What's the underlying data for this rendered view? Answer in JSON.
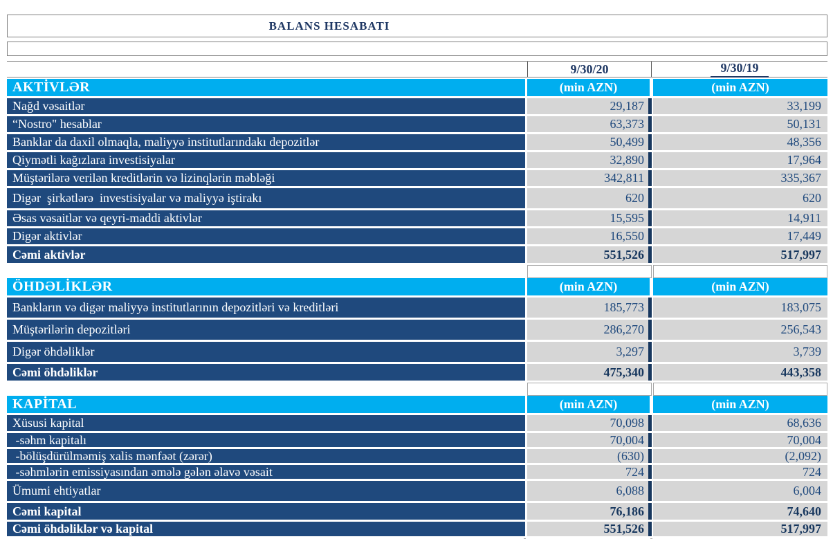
{
  "title": "BALANS HESABATI",
  "columns": {
    "col1": "9/30/20",
    "col2": "9/30/19"
  },
  "unit_label": "(min AZN)",
  "colors": {
    "section_header_bg": "#00AEEF",
    "label_row_bg": "#1F497D",
    "value_cell_bg": "#D6D6D6",
    "thick_divider": "#17375E",
    "title_text": "#1F3864"
  },
  "sections": [
    {
      "name": "AKTİVLƏR",
      "rows": [
        {
          "label": "Nağd vəsaitlər",
          "v2020": "29,187",
          "v2019": "33,199"
        },
        {
          "label": "“Nostro\" hesablar",
          "v2020": "63,373",
          "v2019": "50,131"
        },
        {
          "label": "Banklar da daxil olmaqla, maliyyə institutlarındakı depozitlər",
          "v2020": "50,499",
          "v2019": "48,356"
        },
        {
          "label": "Qiymətli kağızlara investisiyalar",
          "v2020": "32,890",
          "v2019": "17,964"
        },
        {
          "label": "Müştərilərə verilən kreditlərin və lizinqlərin məbləği",
          "v2020": "342,811",
          "v2019": "335,367"
        },
        {
          "label": "Digər  şirkətlərə  investisiyalar və maliyyə iştirakı",
          "v2020": "620",
          "v2019": "620",
          "variant": "roomy"
        },
        {
          "label": "Əsas vəsaitlər və qeyri-maddi aktivlər",
          "v2020": "15,595",
          "v2019": "14,911"
        },
        {
          "label": "Digər aktivlər",
          "v2020": "16,550",
          "v2019": "17,449"
        },
        {
          "label": "Cəmi aktivlər",
          "v2020": "551,526",
          "v2019": "517,997",
          "total": true
        }
      ]
    },
    {
      "name": "ÖHDƏLİKLƏR",
      "rows": [
        {
          "label": "Bankların və digər maliyyə institutlarının depozitləri və kreditləri",
          "v2020": "185,773",
          "v2019": "183,075",
          "variant": "roomy"
        },
        {
          "label": "Müştərilərin depozitləri",
          "v2020": "286,270",
          "v2019": "256,543",
          "variant": "roomy"
        },
        {
          "label": "Digər öhdəliklər",
          "v2020": "3,297",
          "v2019": "3,739",
          "variant": "roomy"
        },
        {
          "label": "Cəmi öhdəliklər",
          "v2020": "475,340",
          "v2019": "443,358",
          "total": true
        }
      ]
    },
    {
      "name": "KAPİTAL",
      "rows": [
        {
          "label": "Xüsusi kapital",
          "v2020": "70,098",
          "v2019": "68,636"
        },
        {
          "label": " -səhm kapitalı",
          "v2020": "70,004",
          "v2019": "70,004",
          "variant": "compact"
        },
        {
          "label": " -bölüşdürülməmiş xalis mənfəət (zərər)",
          "v2020": "(630)",
          "v2019": "(2,092)",
          "variant": "compact"
        },
        {
          "label": " -səhmlərin emissiyasından əmələ gələn əlavə vəsait",
          "v2020": "724",
          "v2019": "724",
          "variant": "compact"
        },
        {
          "label": "Ümumi ehtiyatlar",
          "v2020": "6,088",
          "v2019": "6,004",
          "variant": "roomy"
        },
        {
          "label": "Cəmi kapital",
          "v2020": "76,186",
          "v2019": "74,640",
          "total": true
        },
        {
          "label": "Cəmi öhdəliklər və kapital",
          "v2020": "551,526",
          "v2019": "517,997",
          "total": true,
          "variant": "total-compact"
        }
      ]
    }
  ]
}
